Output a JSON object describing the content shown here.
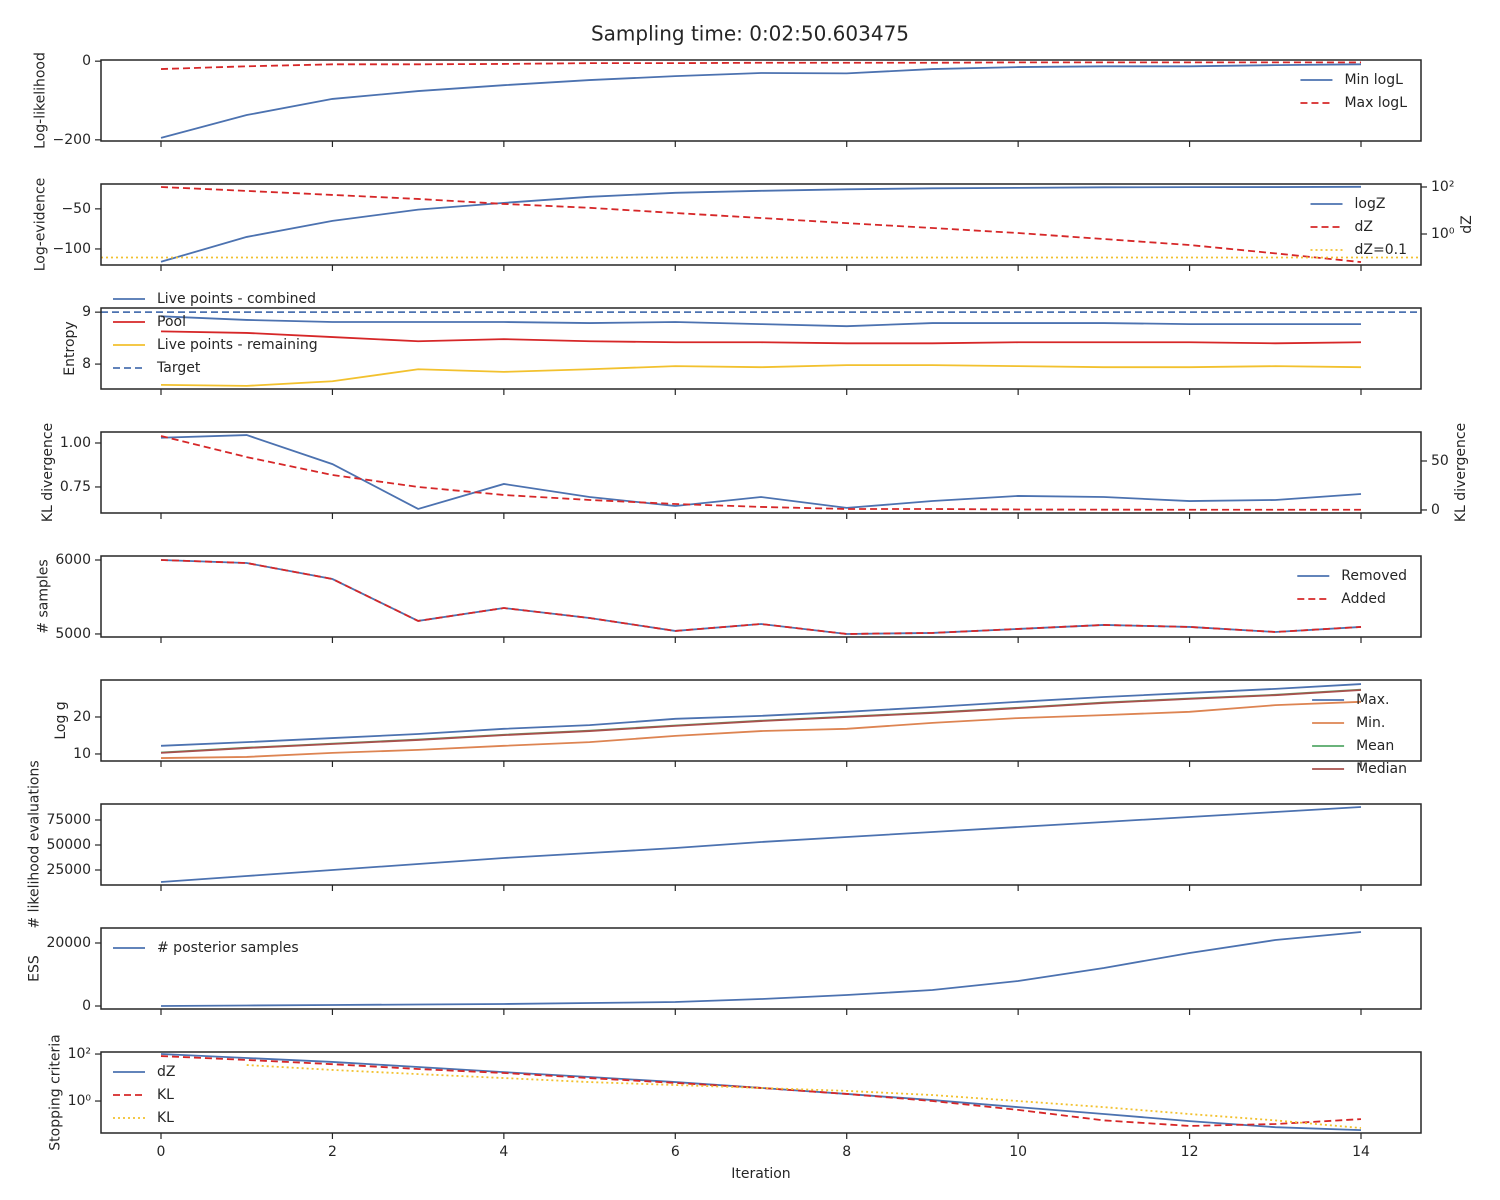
{
  "title": "Sampling time: 0:02:50.603475",
  "chart_data": [
    {
      "type": "line",
      "ylabel": "Log-likelihood",
      "x": [
        0,
        1,
        2,
        3,
        4,
        5,
        6,
        7,
        8,
        9,
        10,
        11,
        12,
        13,
        14
      ],
      "xlim": [
        -0.7,
        14.7
      ],
      "xticks": [
        0,
        2,
        4,
        6,
        8,
        10,
        12,
        14
      ],
      "ylim": [
        -203,
        3
      ],
      "yticks": [
        {
          "value": -200,
          "label": "−200"
        },
        0
      ],
      "legend": "upper right",
      "series": [
        {
          "name": "Min logL",
          "color": "#4c72b0",
          "style": "solid",
          "values": [
            -195,
            -137,
            -96,
            -76,
            -61,
            -48,
            -38,
            -30,
            -31,
            -20,
            -15,
            -13,
            -13,
            -10,
            -8
          ]
        },
        {
          "name": "Max logL",
          "color": "#d62728",
          "style": "dashed",
          "values": [
            -20,
            -13,
            -8,
            -8,
            -7,
            -5,
            -5,
            -4,
            -4,
            -4,
            -3,
            -3,
            -3,
            -3,
            -3
          ]
        }
      ]
    },
    {
      "type": "line",
      "ylabel": "Log-evidence",
      "x": [
        0,
        1,
        2,
        3,
        4,
        5,
        6,
        7,
        8,
        9,
        10,
        11,
        12,
        13,
        14
      ],
      "xlim": [
        -0.7,
        14.7
      ],
      "xticks": [
        0,
        2,
        4,
        6,
        8,
        10,
        12,
        14
      ],
      "ylim": [
        -120,
        -19
      ],
      "yticks": [
        {
          "value": -100,
          "label": "−100"
        },
        {
          "value": -50,
          "label": "−50"
        }
      ],
      "y2label": "dZ",
      "y2log": true,
      "y2lim": [
        0.048,
        134
      ],
      "y2ticks": [
        {
          "value": 1,
          "label": "10⁰"
        },
        {
          "value": 100,
          "label": "10²"
        }
      ],
      "legend": "upper right",
      "series": [
        {
          "name": "logZ",
          "color": "#4c72b0",
          "style": "solid",
          "values": [
            -116,
            -85,
            -65,
            -51,
            -42.5,
            -35,
            -30,
            -27.5,
            -25.6,
            -24.4,
            -23.8,
            -23.1,
            -22.9,
            -22.8,
            -22.5
          ]
        },
        {
          "name": "dZ",
          "color": "#d62728",
          "style": "dashed",
          "axis": "y2",
          "values": [
            100,
            68,
            46,
            31,
            19,
            13,
            7.8,
            4.8,
            2.9,
            1.8,
            1.1,
            0.61,
            0.34,
            0.15,
            0.064
          ]
        },
        {
          "name": "dZ=0.1",
          "color": "#f2c12e",
          "style": "dotted",
          "axis": "y2",
          "hline": 0.1
        }
      ]
    },
    {
      "type": "line",
      "ylabel": "Entropy",
      "x": [
        0,
        1,
        2,
        3,
        4,
        5,
        6,
        7,
        8,
        9,
        10,
        11,
        12,
        13,
        14
      ],
      "xlim": [
        -0.7,
        14.7
      ],
      "xticks": [
        0,
        2,
        4,
        6,
        8,
        10,
        12,
        14
      ],
      "ylim": [
        7.52,
        9.08
      ],
      "yticks": [
        8,
        9
      ],
      "legend": "upper left",
      "series": [
        {
          "name": "Live points - combined",
          "color": "#4c72b0",
          "style": "solid",
          "values": [
            8.92,
            8.85,
            8.81,
            8.81,
            8.81,
            8.79,
            8.81,
            8.77,
            8.73,
            8.79,
            8.79,
            8.79,
            8.77,
            8.77,
            8.77
          ]
        },
        {
          "name": "Pool",
          "color": "#d62728",
          "style": "solid",
          "values": [
            8.63,
            8.6,
            8.52,
            8.44,
            8.48,
            8.44,
            8.42,
            8.42,
            8.4,
            8.4,
            8.42,
            8.42,
            8.42,
            8.4,
            8.42
          ]
        },
        {
          "name": "Live points - remaining",
          "color": "#f2c12e",
          "style": "solid",
          "values": [
            7.6,
            7.58,
            7.67,
            7.9,
            7.85,
            7.9,
            7.96,
            7.94,
            7.98,
            7.98,
            7.96,
            7.94,
            7.94,
            7.96,
            7.94
          ]
        },
        {
          "name": "Target",
          "color": "#4c72b0",
          "style": "dashed",
          "hline": 9
        }
      ]
    },
    {
      "type": "line",
      "ylabel": "KL divergence",
      "x": [
        0,
        1,
        2,
        3,
        4,
        5,
        6,
        7,
        8,
        9,
        10,
        11,
        12,
        13,
        14
      ],
      "xlim": [
        -0.7,
        14.7
      ],
      "xticks": [
        0,
        2,
        4,
        6,
        8,
        10,
        12,
        14
      ],
      "ylim": [
        0.602,
        1.0625
      ],
      "yticks": [
        0.75,
        {
          "value": 1,
          "label": "1.00"
        }
      ],
      "y2label": "KL divergence",
      "y2lim": [
        -3.1,
        79.6
      ],
      "y2ticks": [
        0,
        50
      ],
      "series": [
        {
          "color": "#4c72b0",
          "style": "solid",
          "values": [
            1.03,
            1.045,
            0.88,
            0.625,
            0.767,
            0.693,
            0.642,
            0.693,
            0.631,
            0.67,
            0.699,
            0.693,
            0.67,
            0.676,
            0.71
          ]
        },
        {
          "color": "#d62728",
          "style": "dashed",
          "axis": "y2",
          "values": [
            75.5,
            54,
            35.7,
            23.5,
            15.3,
            10.2,
            6.1,
            3.1,
            1,
            1,
            0.5,
            0.3,
            0.2,
            0.2,
            0.2
          ]
        }
      ]
    },
    {
      "type": "line",
      "ylabel": "# samples",
      "x": [
        0,
        1,
        2,
        3,
        4,
        5,
        6,
        7,
        8,
        9,
        10,
        11,
        12,
        13,
        14
      ],
      "xlim": [
        -0.7,
        14.7
      ],
      "xticks": [
        0,
        2,
        4,
        6,
        8,
        10,
        12,
        14
      ],
      "ylim": [
        4959,
        6054
      ],
      "yticks": [
        5000,
        6000
      ],
      "legend": "upper right",
      "series": [
        {
          "name": "Removed",
          "color": "#4c72b0",
          "style": "solid",
          "values": [
            6000,
            5959,
            5743,
            5176,
            5351,
            5216,
            5041,
            5135,
            5000,
            5014,
            5068,
            5122,
            5095,
            5027,
            5095
          ]
        },
        {
          "name": "Added",
          "color": "#d62728",
          "style": "dashed",
          "values": [
            6000,
            5959,
            5743,
            5176,
            5351,
            5216,
            5041,
            5135,
            5000,
            5014,
            5068,
            5122,
            5095,
            5027,
            5095
          ]
        }
      ]
    },
    {
      "type": "line",
      "ylabel": "Log g",
      "x": [
        0,
        1,
        2,
        3,
        4,
        5,
        6,
        7,
        8,
        9,
        10,
        11,
        12,
        13,
        14
      ],
      "xlim": [
        -0.7,
        14.7
      ],
      "xticks": [
        0,
        2,
        4,
        6,
        8,
        10,
        12,
        14
      ],
      "ylim": [
        8.1,
        30
      ],
      "yticks": [
        10,
        20
      ],
      "legend": "upper right",
      "series": [
        {
          "name": "Max.",
          "color": "#4c72b0",
          "style": "solid",
          "values": [
            12.2,
            13.2,
            14.3,
            15.4,
            16.8,
            17.8,
            19.5,
            20.3,
            21.4,
            22.7,
            24.1,
            25.4,
            26.5,
            27.6,
            28.9
          ]
        },
        {
          "name": "Min.",
          "color": "#dd8452",
          "style": "solid",
          "values": [
            8.9,
            9.2,
            10.3,
            11.1,
            12.2,
            13.2,
            14.9,
            16.2,
            16.8,
            18.4,
            19.7,
            20.5,
            21.4,
            23.2,
            24.1
          ]
        },
        {
          "name": "Mean",
          "color": "#55a868",
          "style": "solid",
          "values": [
            10.4,
            11.7,
            12.8,
            13.9,
            15.2,
            16.3,
            17.7,
            19,
            20.1,
            21.2,
            22.5,
            23.9,
            25,
            26,
            27.4
          ]
        },
        {
          "name": "Median",
          "color": "#a8504c",
          "style": "solid",
          "values": [
            10.3,
            11.6,
            12.7,
            13.8,
            15.1,
            16.2,
            17.6,
            18.9,
            20,
            21.1,
            22.4,
            23.8,
            24.9,
            25.9,
            27.3
          ]
        }
      ]
    },
    {
      "type": "line",
      "ylabel": "# likelihood evaluations",
      "x": [
        0,
        1,
        2,
        3,
        4,
        5,
        6,
        7,
        8,
        9,
        10,
        11,
        12,
        13,
        14
      ],
      "xlim": [
        -0.7,
        14.7
      ],
      "xticks": [
        0,
        2,
        4,
        6,
        8,
        10,
        12,
        14
      ],
      "ylim": [
        10000,
        91000
      ],
      "yticks": [
        25000,
        50000,
        75000
      ],
      "series": [
        {
          "color": "#4c72b0",
          "style": "solid",
          "values": [
            13000,
            19000,
            25000,
            31000,
            37000,
            42000,
            47000,
            53000,
            58000,
            63000,
            68000,
            73000,
            78000,
            83000,
            88000
          ]
        }
      ]
    },
    {
      "type": "line",
      "ylabel": "ESS",
      "x": [
        0,
        1,
        2,
        3,
        4,
        5,
        6,
        7,
        8,
        9,
        10,
        11,
        12,
        13,
        14
      ],
      "xlim": [
        -0.7,
        14.7
      ],
      "xticks": [
        0,
        2,
        4,
        6,
        8,
        10,
        12,
        14
      ],
      "ylim": [
        -950,
        24760
      ],
      "yticks": [
        0,
        20000
      ],
      "legend": "upper left",
      "series": [
        {
          "name": "# posterior samples",
          "color": "#4c72b0",
          "style": "solid",
          "values": [
            0,
            160,
            320,
            480,
            640,
            950,
            1270,
            2220,
            3490,
            5080,
            7940,
            12070,
            16830,
            20950,
            23490
          ]
        }
      ]
    },
    {
      "type": "line",
      "ylabel": "Stopping criteria",
      "xlabel": "Iteration",
      "x": [
        0,
        1,
        2,
        3,
        4,
        5,
        6,
        7,
        8,
        9,
        10,
        11,
        12,
        13,
        14
      ],
      "xlim": [
        -0.7,
        14.7
      ],
      "xticks": [
        0,
        2,
        4,
        6,
        8,
        10,
        12,
        14
      ],
      "ylog": true,
      "ylim": [
        0.0436,
        122
      ],
      "yticks": [
        {
          "value": 1,
          "label": "10⁰"
        },
        {
          "value": 100,
          "label": "10²"
        }
      ],
      "legend": "upper left",
      "series": [
        {
          "name": "dZ",
          "color": "#4c72b0",
          "style": "solid",
          "values": [
            100,
            68,
            46,
            28,
            17,
            10.5,
            6.4,
            3.6,
            2,
            1.1,
            0.55,
            0.28,
            0.14,
            0.077,
            0.058
          ]
        },
        {
          "name": "KL",
          "color": "#d62728",
          "style": "dashed",
          "values": [
            82,
            56,
            37,
            23,
            15.6,
            9.5,
            5.9,
            3.6,
            2,
            1,
            0.42,
            0.15,
            0.087,
            0.105,
            0.17
          ]
        },
        {
          "name": "KL",
          "color": "#f2c12e",
          "style": "dotted",
          "values": [
            null,
            34,
            21,
            14,
            9.5,
            6.4,
            4.8,
            3.6,
            2.7,
            1.8,
            1,
            0.55,
            0.28,
            0.15,
            0.071
          ]
        }
      ]
    }
  ]
}
